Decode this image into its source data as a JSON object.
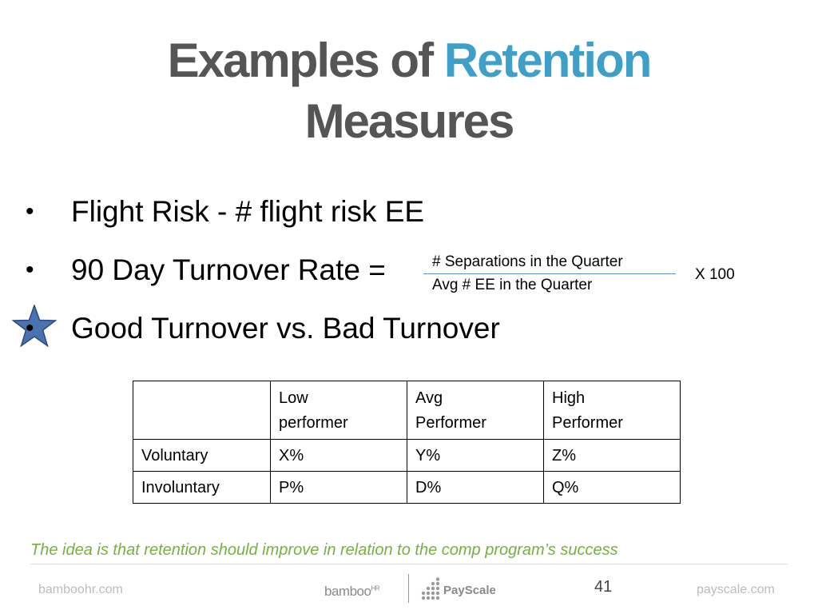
{
  "slide": {
    "title_part1": "Examples of ",
    "title_accent": "Retention",
    "title_part2": "Measures",
    "colors": {
      "title": "#555555",
      "accent": "#3ea0c9",
      "note": "#76b041",
      "footer": "#bcbcbc",
      "star": "#3a5f9a"
    }
  },
  "bullets": [
    {
      "dot": "•",
      "text": "Flight Risk - # flight risk EE"
    },
    {
      "dot": "•",
      "text": "90 Day Turnover Rate ="
    },
    {
      "dot": "•",
      "text": "Good Turnover vs. Bad Turnover",
      "icon": "star-icon"
    }
  ],
  "formula": {
    "numerator": "# Separations in the Quarter",
    "denominator": "Avg # EE in the Quarter",
    "multiplier": "X 100"
  },
  "table": {
    "headers": [
      "",
      "Low performer",
      "Avg Performer",
      "High Performer"
    ],
    "header_lines": [
      [
        "",
        ""
      ],
      [
        "Low",
        "performer"
      ],
      [
        "Avg",
        "Performer"
      ],
      [
        "High",
        "Performer"
      ]
    ],
    "rows": [
      [
        "Voluntary",
        "X%",
        "Y%",
        "Z%"
      ],
      [
        "Involuntary",
        "P%",
        "D%",
        "Q%"
      ]
    ]
  },
  "note": "The idea is that retention should improve in relation to the comp program’s success",
  "footer": {
    "left": "bamboohr.com",
    "right": "payscale.com",
    "page_number": "41",
    "logo_bamboo": "bamboo",
    "logo_bamboo_mark": "HR",
    "logo_payscale": "PayScale"
  }
}
